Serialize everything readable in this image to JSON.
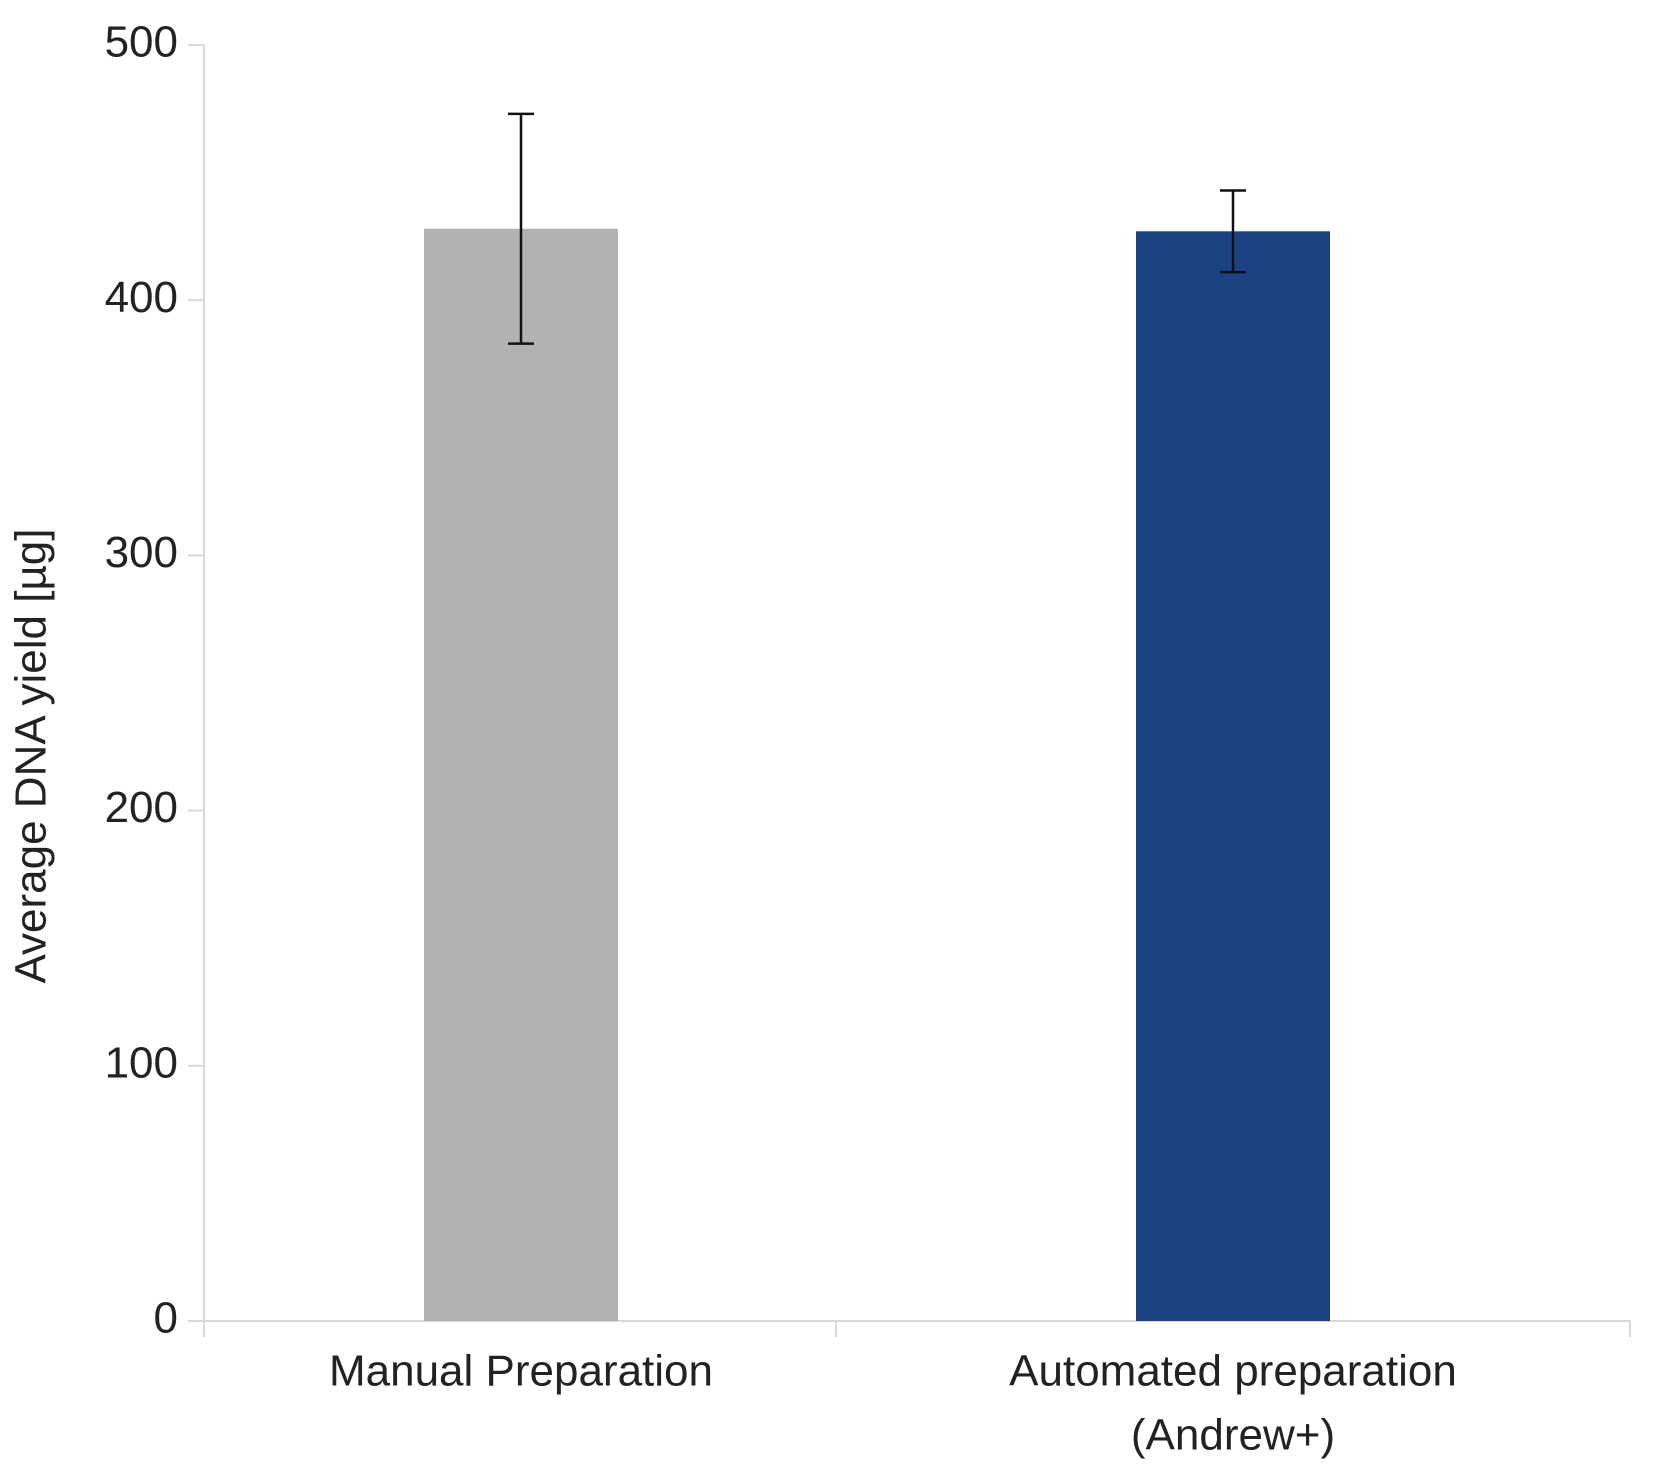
{
  "chart_data": {
    "type": "bar",
    "y_label": "Average DNA yield [µg]",
    "categories": [
      [
        "Manual Preparation"
      ],
      [
        "Automated preparation",
        "(Andrew+)"
      ]
    ],
    "values": [
      428,
      427
    ],
    "errors": [
      45,
      16
    ],
    "colors": [
      "#b2b2b2",
      "#1b4384"
    ],
    "ylim": [
      0,
      500
    ],
    "yticks": [
      0,
      100,
      200,
      300,
      400,
      500
    ],
    "grid": false
  }
}
